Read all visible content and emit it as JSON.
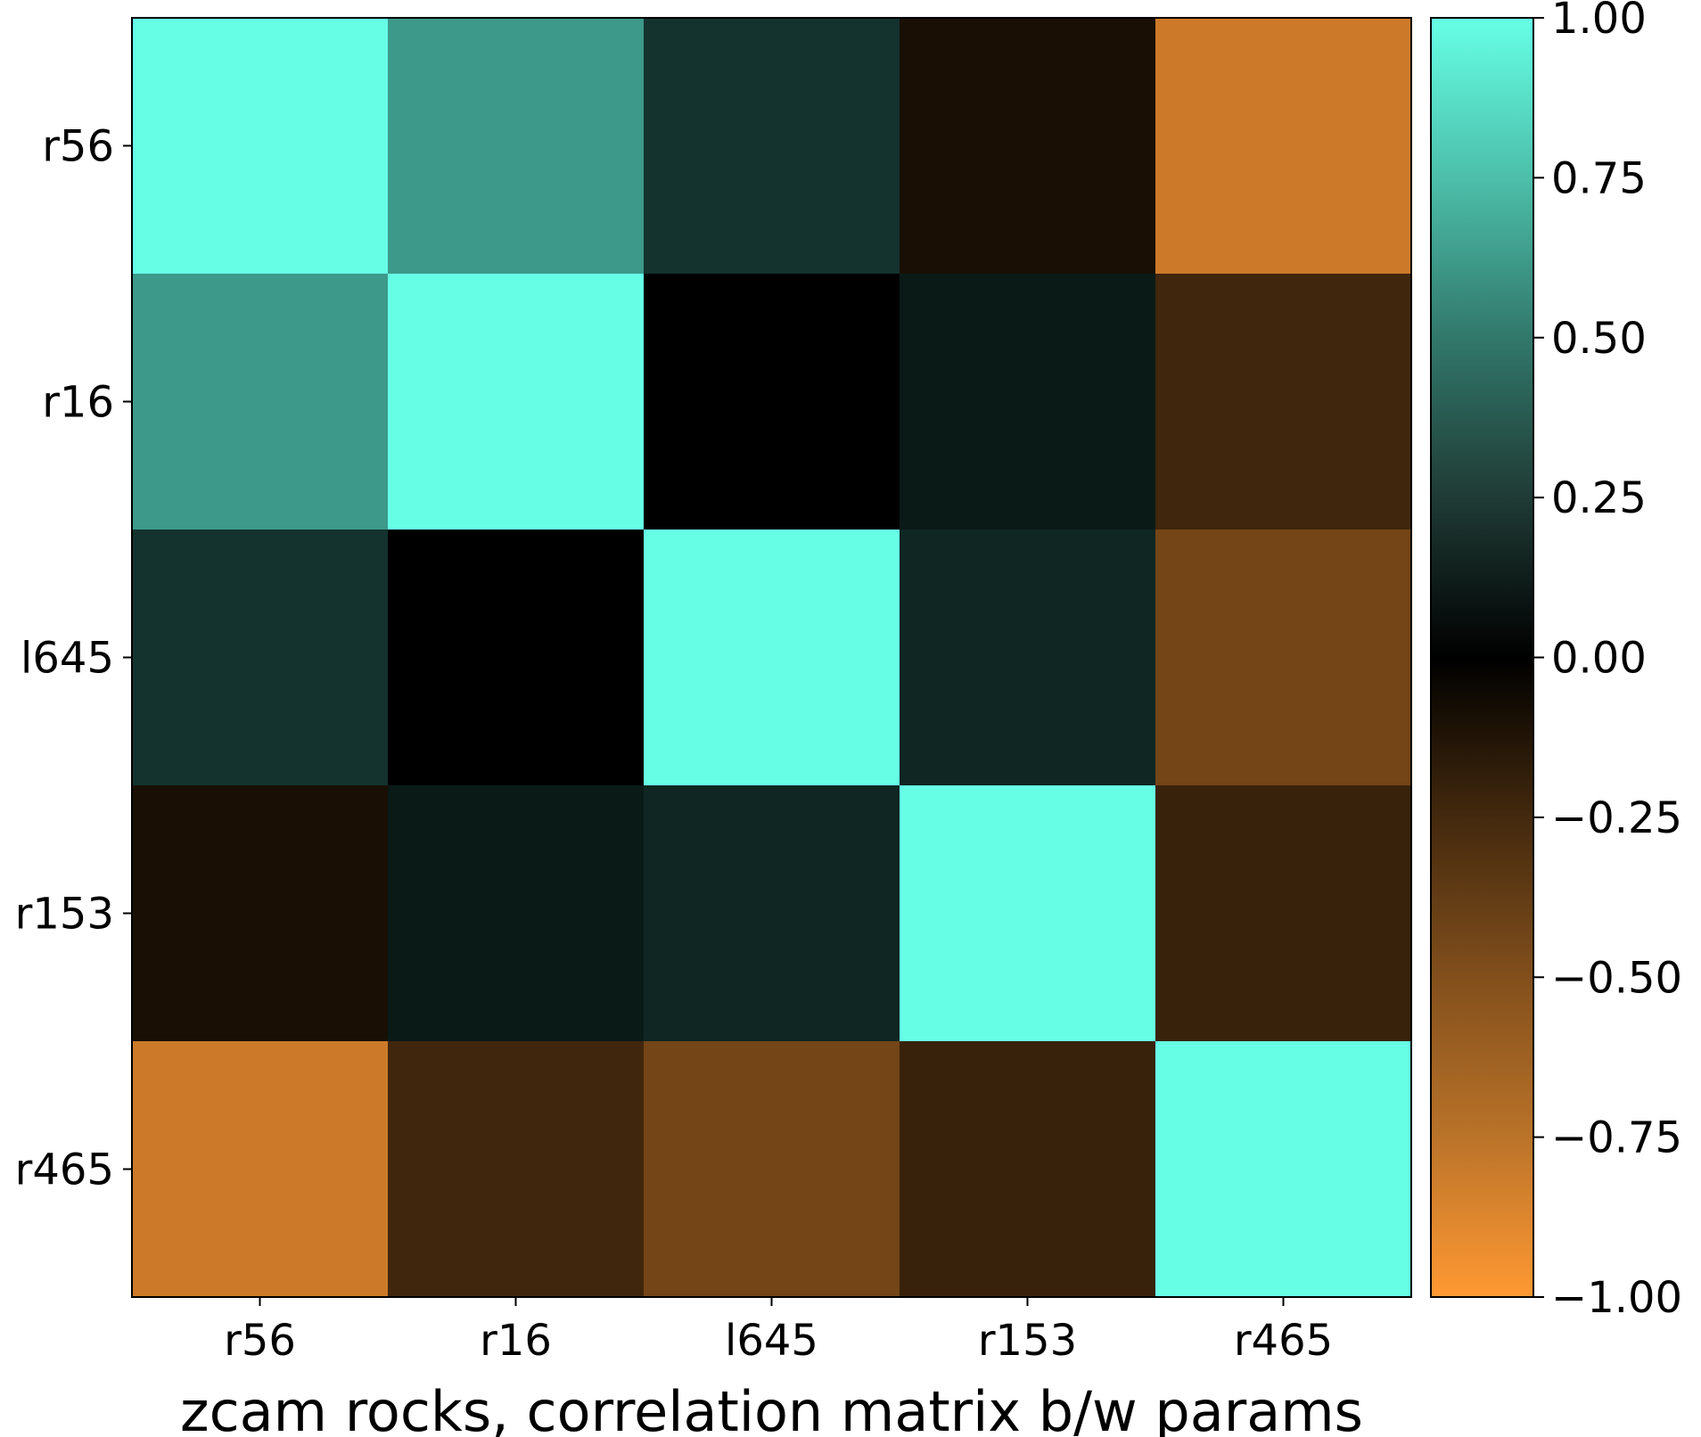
{
  "chart_data": {
    "type": "heatmap",
    "title": "",
    "xlabel": "zcam rocks, correlation matrix b/w params",
    "ylabel": "",
    "x_categories": [
      "r56",
      "r16",
      "l645",
      "r153",
      "r465"
    ],
    "y_categories": [
      "r56",
      "r16",
      "l645",
      "r153",
      "r465"
    ],
    "values": [
      [
        1.0,
        0.6,
        0.2,
        -0.1,
        -0.8
      ],
      [
        0.6,
        1.0,
        0.0,
        0.1,
        -0.25
      ],
      [
        0.2,
        0.0,
        1.0,
        0.15,
        -0.45
      ],
      [
        -0.1,
        0.1,
        0.15,
        1.0,
        -0.22
      ],
      [
        -0.8,
        -0.25,
        -0.45,
        -0.22,
        1.0
      ]
    ],
    "colorbar": {
      "range": [
        -1.0,
        1.0
      ],
      "ticks": [
        1.0,
        0.75,
        0.5,
        0.25,
        0.0,
        -0.25,
        -0.5,
        -0.75,
        -1.0
      ],
      "tick_labels": [
        "1.00",
        "0.75",
        "0.50",
        "0.25",
        "0.00",
        "−0.25",
        "−0.50",
        "−0.75",
        "−1.00"
      ],
      "colors": {
        "min": "#ff9933",
        "mid": "#000000",
        "max": "#66ffe6"
      }
    },
    "grid": false,
    "legend": "colorbar-right"
  }
}
